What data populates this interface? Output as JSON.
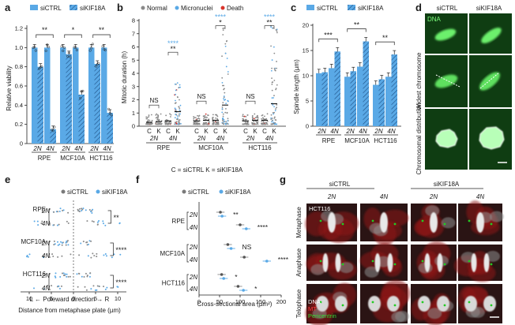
{
  "panel_letters": {
    "a": "a",
    "b": "b",
    "c": "c",
    "d": "d",
    "e": "e",
    "f": "f",
    "g": "g"
  },
  "colors": {
    "blue": "#5aa9e6",
    "dark_blue": "#2a6fb0",
    "grey": "#8a8a8a",
    "red": "#d9342b",
    "green": "#22cc22",
    "black": "#1a1a1a"
  },
  "legend": {
    "ctrl": "siCTRL",
    "kif": "siKIF18A"
  },
  "chart_data": [
    {
      "id": "a",
      "type": "bar",
      "ylabel": "Relative viability",
      "ylim": [
        0,
        1.2
      ],
      "yticks": [
        "0",
        "0.2",
        "0.4",
        "0.6",
        "0.8",
        "1.0",
        "1.2"
      ],
      "groups": [
        "RPE",
        "MCF10A",
        "HCT116"
      ],
      "ploidy": [
        "2N",
        "4N"
      ],
      "series": [
        {
          "name": "siCTRL",
          "values": [
            1.0,
            1.0,
            1.0,
            1.0,
            1.0,
            1.0
          ]
        },
        {
          "name": "siKIF18A",
          "values": [
            0.8,
            0.15,
            0.93,
            0.51,
            0.83,
            0.32
          ]
        }
      ],
      "sig": [
        "**",
        "*",
        "**"
      ]
    },
    {
      "id": "b",
      "type": "scatter",
      "ylabel": "Mitotic duration (h)",
      "ylim": [
        0,
        8
      ],
      "yticks": [
        "0",
        "1",
        "2",
        "3",
        "4",
        "5",
        "6",
        "7",
        "8"
      ],
      "legend": [
        "Normal",
        "Micronuclei",
        "Death"
      ],
      "groups": [
        "RPE",
        "MCF10A",
        "HCT116"
      ],
      "cond": [
        "C",
        "K",
        "C",
        "K"
      ],
      "ploidy": [
        "2N",
        "4N"
      ],
      "medians": [
        0.3,
        0.35,
        0.4,
        1.1,
        0.4,
        0.45,
        0.45,
        1.6,
        0.4,
        0.45,
        0.45,
        1.7
      ],
      "sig_top": [
        "****",
        "****",
        "****"
      ],
      "sig_mid": [
        "**",
        "*",
        "**"
      ],
      "sig_ns": [
        "NS",
        "NS",
        "NS"
      ],
      "footnote": "C = siCTRL   K = siKIF18A"
    },
    {
      "id": "c",
      "type": "bar",
      "ylabel": "Spindle length (µm)",
      "ylim": [
        0,
        20
      ],
      "yticks": [
        "0",
        "5",
        "10",
        "15",
        "20"
      ],
      "groups": [
        "RPE",
        "MCF10A",
        "HCT116"
      ],
      "ploidy": [
        "2N",
        "4N"
      ],
      "series": [
        {
          "name": "siCTRL",
          "values": [
            10.5,
            11.5,
            9.8,
            11.8,
            8.2,
            9.8
          ]
        },
        {
          "name": "siKIF18A",
          "values": [
            10.7,
            14.8,
            10.9,
            16.8,
            9.3,
            14.2
          ]
        }
      ],
      "sig": [
        "***",
        "**",
        "**"
      ]
    },
    {
      "id": "e",
      "type": "scatter",
      "xlabel": "Distance from metaphase plate (µm)",
      "direction": "L ← Poleward direction → R",
      "xticks": [
        "10",
        "5",
        "0",
        "5",
        "10"
      ],
      "rows": [
        "RPE 2N",
        "RPE 4N",
        "MCF10A 2N",
        "MCF10A 4N",
        "HCT116 2N",
        "HCT116 4N"
      ],
      "groups": [
        "RPE",
        "MCF10A",
        "HCT116"
      ],
      "ploidy": [
        "2N",
        "4N"
      ],
      "sig": [
        "**",
        "****",
        "****"
      ]
    },
    {
      "id": "f",
      "type": "scatter",
      "xlabel": "Cross-sectional area (µm²)",
      "xlim": [
        0,
        200
      ],
      "xticks": [
        "0",
        "50",
        "100",
        "150",
        "200"
      ],
      "groups": [
        "RPE",
        "MCF10A",
        "HCT116"
      ],
      "ploidy": [
        "2N",
        "4N"
      ],
      "means": {
        "siCTRL": [
          52,
          100,
          70,
          110,
          55,
          95
        ],
        "siKIF18A": [
          56,
          115,
          78,
          165,
          60,
          108
        ]
      },
      "sig": [
        "**",
        "****",
        "NS",
        "****",
        "*",
        "*"
      ]
    }
  ],
  "panel_d": {
    "col_headers": [
      "siCTRL",
      "siKIF18A"
    ],
    "dna_label": "DNA",
    "row_labels": [
      "Widest chromosome",
      "Chromosomal distribution"
    ]
  },
  "panel_g": {
    "group_headers": [
      "siCTRL",
      "siKIF18A"
    ],
    "ploidy": [
      "2N",
      "4N",
      "2N",
      "4N"
    ],
    "row_labels": [
      "Metaphase",
      "Anaphase",
      "Telophase"
    ],
    "cell_line": "HCT116",
    "channel_labels": [
      "DNA",
      "MT",
      "Pericentrin"
    ]
  }
}
